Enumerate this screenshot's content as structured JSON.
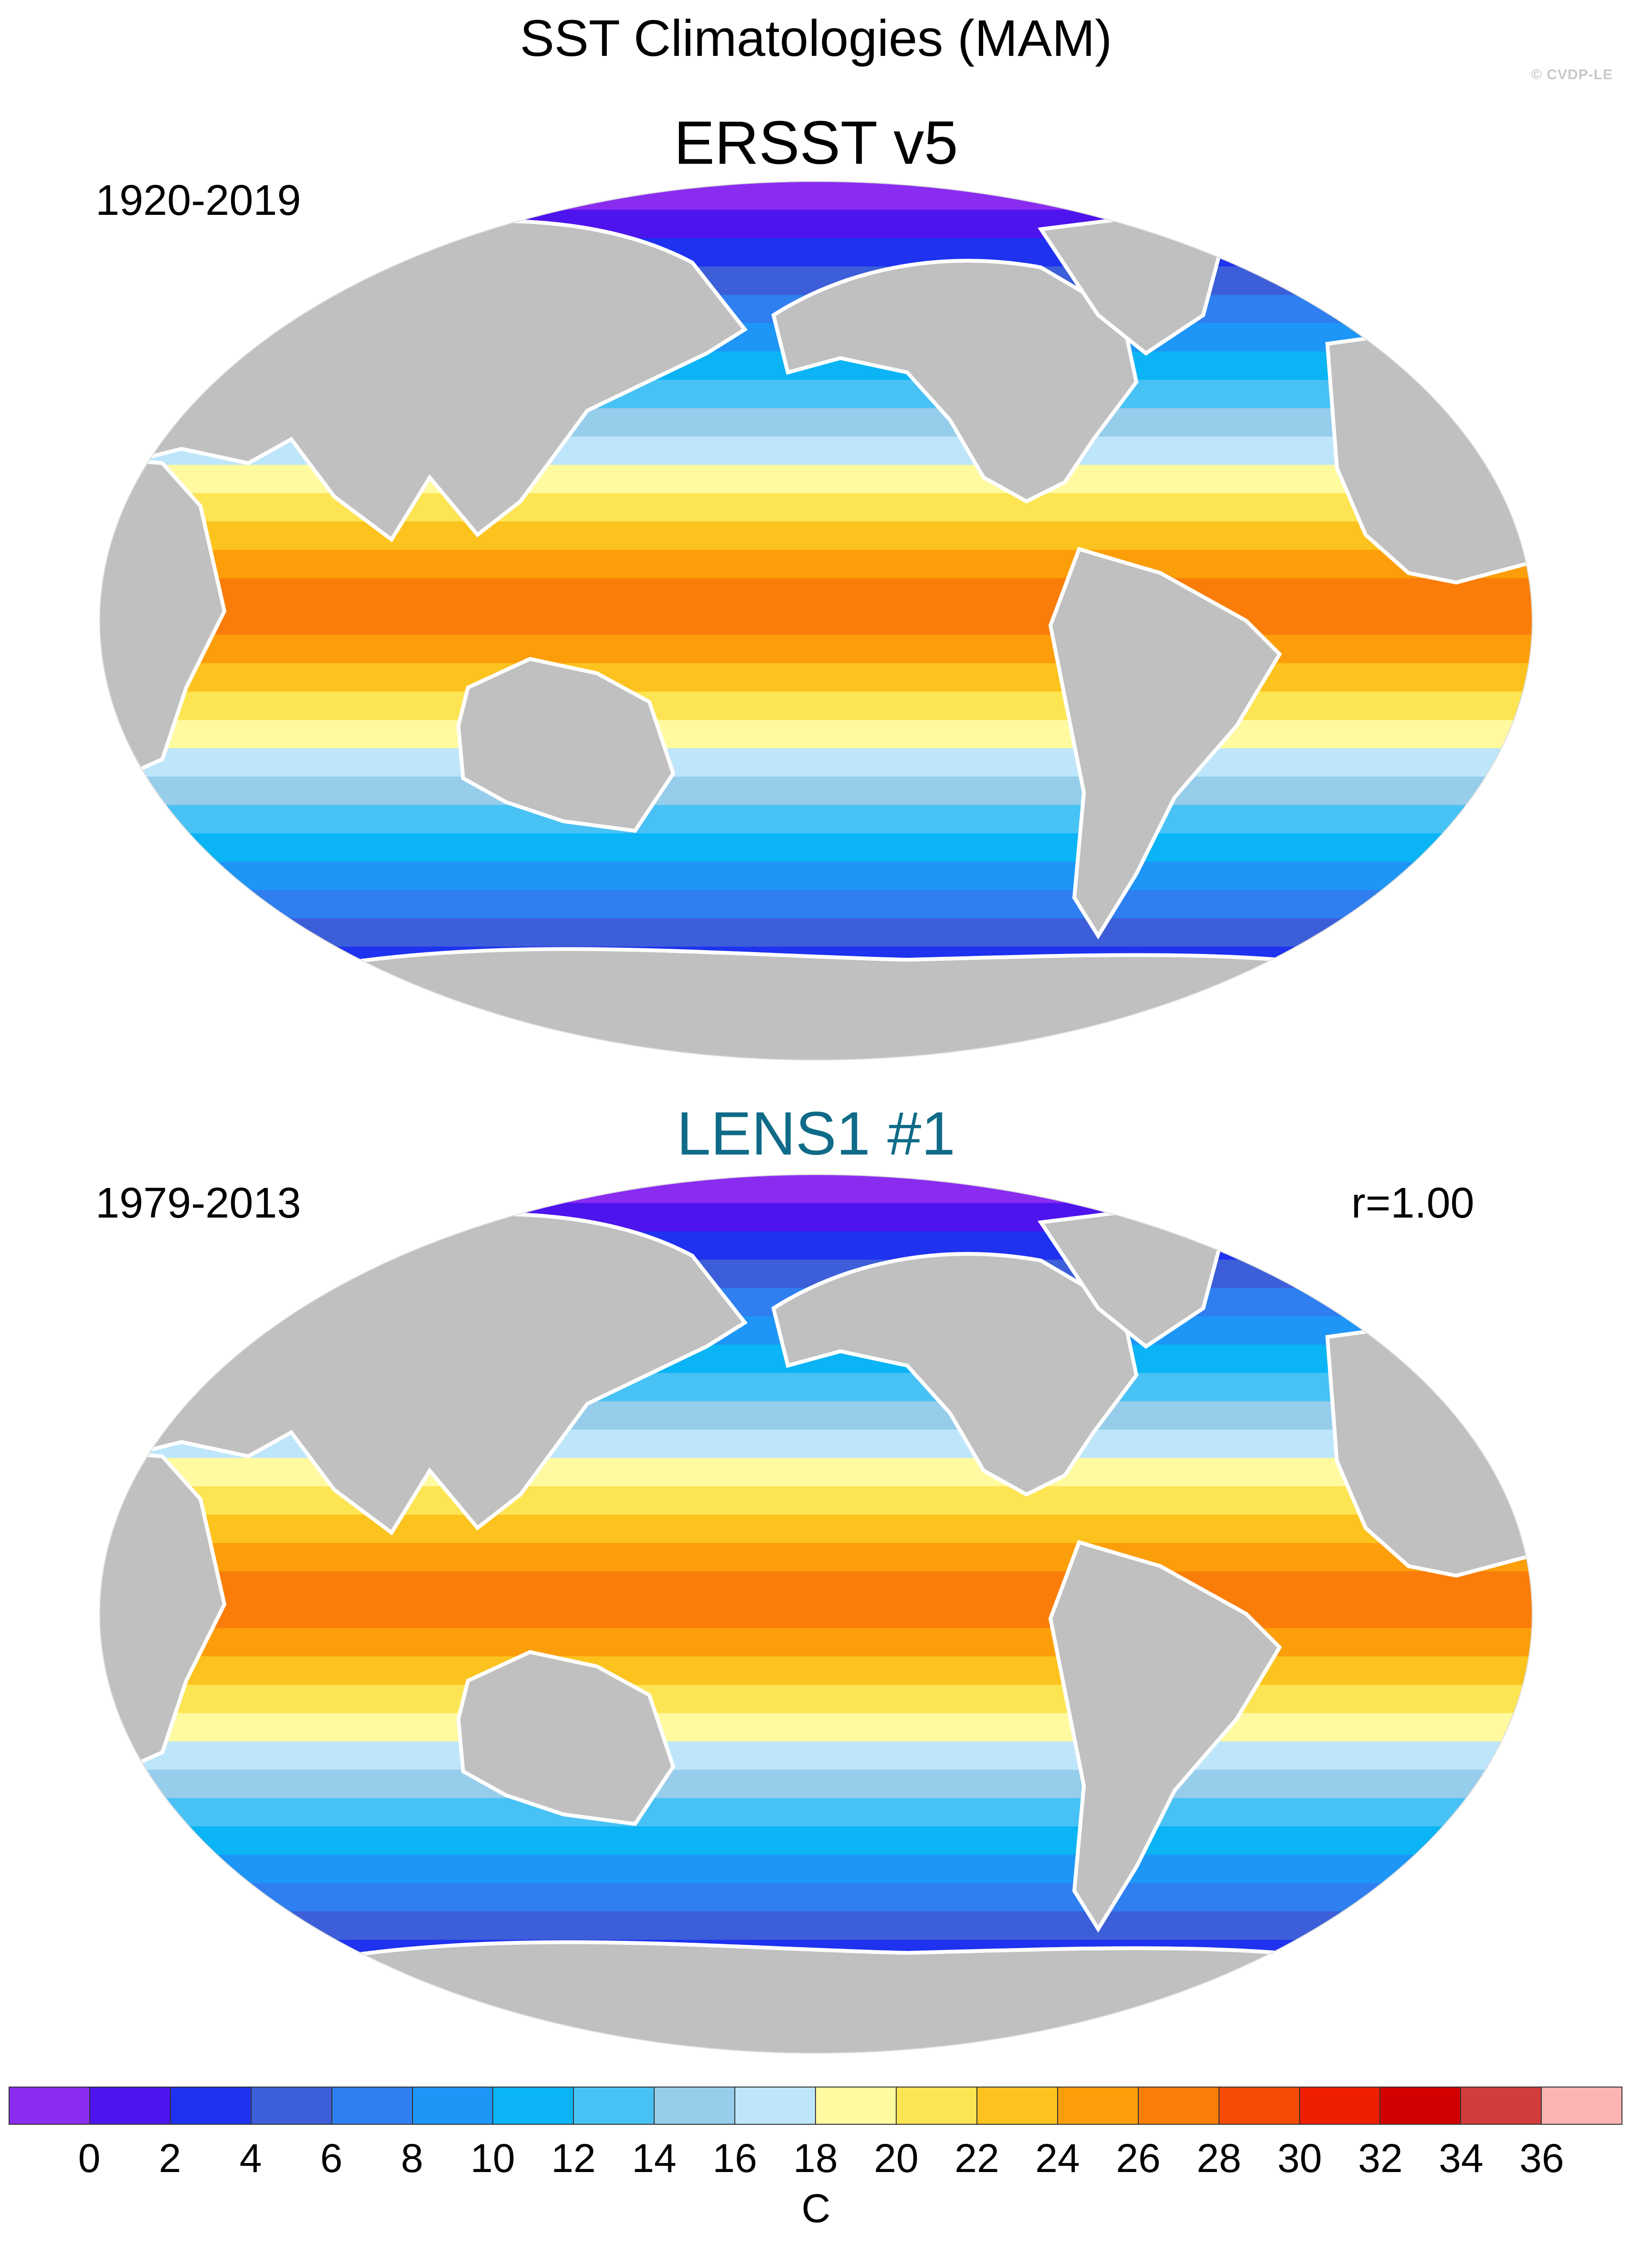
{
  "title": "SST Climatologies (MAM)",
  "copyright": "© CVDP-LE",
  "panels": [
    {
      "title": "ERSST v5",
      "period": "1920-2019",
      "title_color": "#000000"
    },
    {
      "title": "LENS1 #1",
      "period": "1979-2013",
      "corr": "r=1.00",
      "title_color": "#0f6b87"
    }
  ],
  "colors": {
    "land": "#c0c0c0",
    "ocean_missing": "#ffffff"
  },
  "colorbar": {
    "unit": "C",
    "labels": [
      "0",
      "2",
      "4",
      "6",
      "8",
      "10",
      "12",
      "14",
      "16",
      "18",
      "20",
      "22",
      "24",
      "26",
      "28",
      "30",
      "32",
      "34",
      "36"
    ],
    "colors": [
      "#8a2cf0",
      "#4d14ee",
      "#1e32f0",
      "#3c5ed8",
      "#2f7ff0",
      "#1e96f7",
      "#0ab4f5",
      "#48c2f5",
      "#96cdeb",
      "#bee6fa",
      "#fffaa0",
      "#fde452",
      "#fcc31e",
      "#fc9e0a",
      "#fa7d0a",
      "#f54b05",
      "#f01e00",
      "#d20000",
      "#d23c3c",
      "#feb4b4"
    ]
  },
  "map_features": [
    "world-ocean",
    "eurasia-continent",
    "africa-continent",
    "north-america-continent",
    "south-america-continent",
    "australia-continent",
    "antarctica-continent",
    "greenland-island"
  ]
}
